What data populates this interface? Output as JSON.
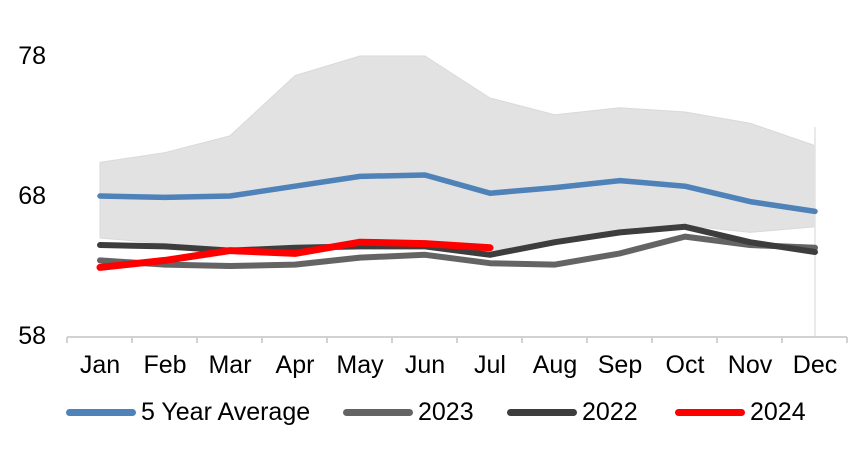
{
  "chart_data": {
    "type": "line",
    "title": "",
    "categories": [
      "Jan",
      "Feb",
      "Mar",
      "Apr",
      "May",
      "Jun",
      "Jul",
      "Aug",
      "Sep",
      "Oct",
      "Nov",
      "Dec"
    ],
    "y_axis": {
      "ticks": [
        78,
        68,
        58
      ],
      "range": [
        58,
        80.7
      ],
      "grid": false
    },
    "legend_position": "bottom",
    "band": {
      "description": "shaded min-max range area",
      "upper": [
        70.4,
        71.1,
        72.3,
        76.6,
        78.0,
        78.0,
        75.0,
        73.8,
        74.3,
        74.0,
        73.2,
        71.6
      ],
      "lower": [
        65.0,
        64.6,
        64.3,
        64.4,
        64.6,
        64.5,
        64.0,
        64.9,
        65.6,
        65.9,
        65.4,
        65.8
      ],
      "fill": "#e2e2e2",
      "edge": "#d9d9d9"
    },
    "series": [
      {
        "name": "5 Year Average",
        "color": "#4e82b8",
        "values": [
          68.0,
          67.9,
          68.0,
          68.7,
          69.4,
          69.5,
          68.2,
          68.6,
          69.1,
          68.7,
          67.6,
          66.9
        ]
      },
      {
        "name": "2023",
        "color": "#646464",
        "values": [
          63.4,
          63.1,
          63.0,
          63.1,
          63.6,
          63.8,
          63.2,
          63.1,
          63.9,
          65.1,
          64.5,
          64.3
        ]
      },
      {
        "name": "2022",
        "color": "#3d3d3d",
        "values": [
          64.5,
          64.4,
          64.1,
          64.3,
          64.4,
          64.4,
          63.8,
          64.7,
          65.4,
          65.8,
          64.7,
          64.0
        ]
      },
      {
        "name": "2024",
        "color": "#fe0000",
        "values": [
          62.9,
          63.4,
          64.1,
          63.9,
          64.7,
          64.6,
          64.3
        ]
      }
    ],
    "axis_color": "#d2d2d2",
    "dec_gridline_color": "#e3e3e3"
  }
}
